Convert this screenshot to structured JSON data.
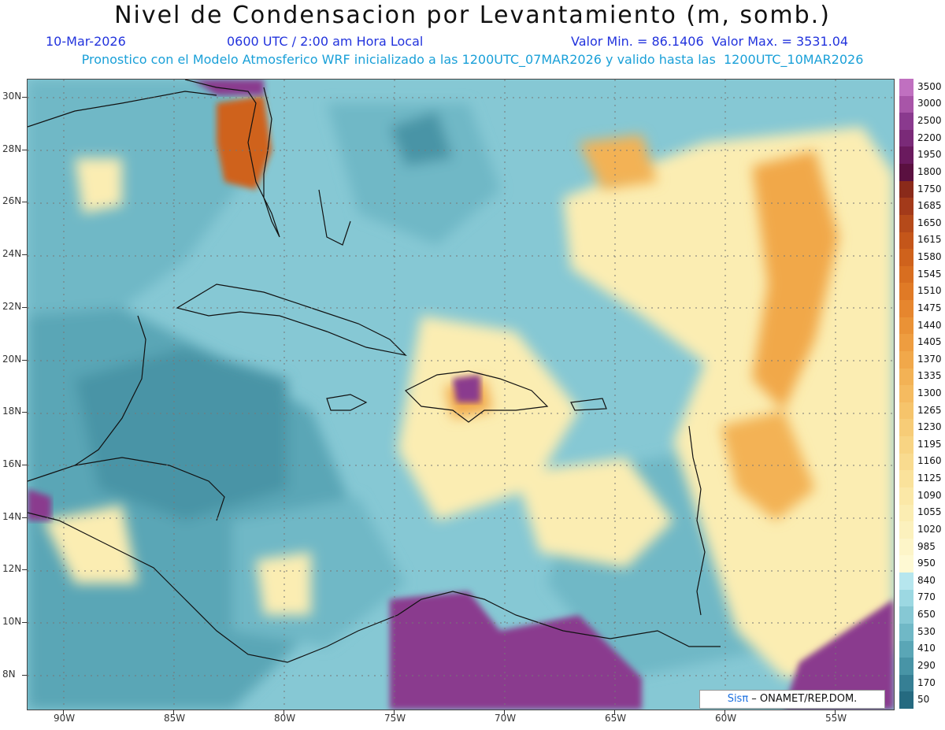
{
  "header": {
    "title": "Nivel de Condensacion por Levantamiento (m, somb.)",
    "date": "10-Mar-2026",
    "time": "0600 UTC / 2:00 am Hora Local",
    "minmax": "Valor Min. = 86.1406  Valor Max. = 3531.04",
    "model_line": "Pronostico con el Modelo Atmosferico WRF inicializado a las 1200UTC_07MAR2026 y valido hasta las  1200UTC_10MAR2026"
  },
  "axes": {
    "lat_labels": [
      "30N",
      "28N",
      "26N",
      "24N",
      "22N",
      "20N",
      "18N",
      "16N",
      "14N",
      "12N",
      "10N",
      "8N"
    ],
    "lon_labels": [
      "90W",
      "85W",
      "80W",
      "75W",
      "70W",
      "65W",
      "60W",
      "55W"
    ]
  },
  "legend": {
    "labels": [
      "3500",
      "3000",
      "2500",
      "2200",
      "1950",
      "1800",
      "1750",
      "1685",
      "1650",
      "1615",
      "1580",
      "1545",
      "1510",
      "1475",
      "1440",
      "1405",
      "1370",
      "1335",
      "1300",
      "1265",
      "1230",
      "1195",
      "1160",
      "1125",
      "1090",
      "1055",
      "1020",
      "985",
      "950",
      "840",
      "770",
      "650",
      "530",
      "410",
      "290",
      "170",
      "50"
    ],
    "colors": [
      "#c070c0",
      "#a855a8",
      "#8a3a8e",
      "#7a2a78",
      "#6a1a5e",
      "#5a1040",
      "#8a2a1a",
      "#a33a1a",
      "#b54a1a",
      "#c4561a",
      "#cf621c",
      "#d86e20",
      "#e07a26",
      "#e6862e",
      "#ea9236",
      "#ee9d40",
      "#f1a84a",
      "#f3b255",
      "#f5bb60",
      "#f6c46b",
      "#f7cc77",
      "#f8d483",
      "#f9db8f",
      "#fae29b",
      "#fbe8a7",
      "#fbedb2",
      "#fcf1bd",
      "#fdf5c8",
      "#fef9d3",
      "#b6e6ee",
      "#9cd8e2",
      "#86c8d4",
      "#70b8c6",
      "#5aa6b6",
      "#4894a6",
      "#367f94",
      "#256a80"
    ]
  },
  "credit": {
    "sis": "Sisπ",
    "rest": " – ONAMET/REP.DOM."
  },
  "colors": {
    "ocean": "#86c8d4",
    "mid": "#70b8c6",
    "deep": "#5aa6b6",
    "yellow": "#fbedb2",
    "orange": "#f1a84a",
    "purple": "#8a3a8e",
    "coast": "#111111"
  }
}
